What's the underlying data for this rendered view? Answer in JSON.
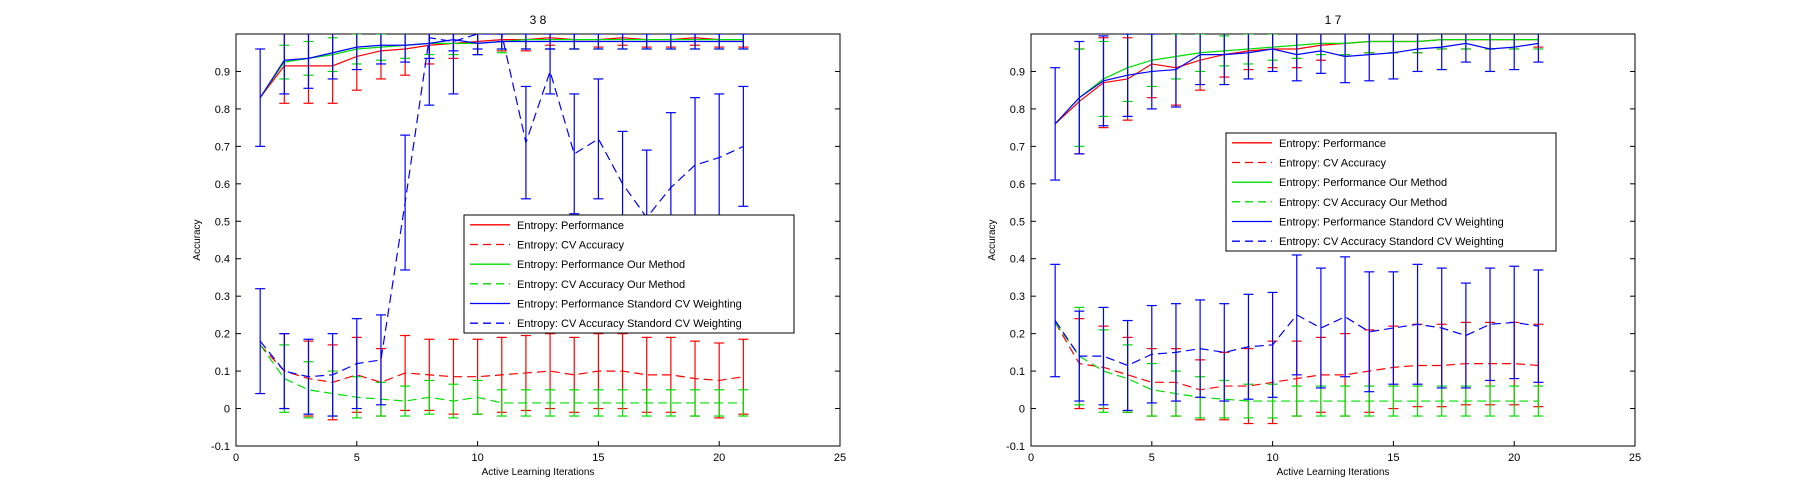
{
  "chart_data": [
    {
      "type": "line",
      "title": "3  8",
      "xlabel": "Active Learning Iterations",
      "ylabel": "Accuracy",
      "xlim": [
        0,
        25
      ],
      "ylim": [
        -0.1,
        1.0
      ],
      "xticks": [
        0,
        5,
        10,
        15,
        20,
        25
      ],
      "yticks": [
        -0.1,
        0,
        0.1,
        0.2,
        0.3,
        0.4,
        0.5,
        0.6,
        0.7,
        0.8,
        0.9
      ],
      "legend_position": "center-right",
      "x": [
        1,
        2,
        3,
        4,
        5,
        6,
        7,
        8,
        9,
        10,
        11,
        12,
        13,
        14,
        15,
        16,
        17,
        18,
        19,
        20,
        21
      ],
      "series": [
        {
          "name": "Entropy: Performance",
          "color": "#ff0000",
          "dash": false,
          "values": [
            0.83,
            0.915,
            0.915,
            0.915,
            0.94,
            0.955,
            0.96,
            0.97,
            0.975,
            0.98,
            0.985,
            0.985,
            0.99,
            0.985,
            0.985,
            0.99,
            0.985,
            0.985,
            0.99,
            0.985,
            0.985
          ],
          "err": [
            0.0,
            0.1,
            0.1,
            0.1,
            0.09,
            0.075,
            0.07,
            0.05,
            0.04,
            0.035,
            0.03,
            0.03,
            0.02,
            0.025,
            0.02,
            0.02,
            0.02,
            0.02,
            0.02,
            0.02,
            0.02
          ]
        },
        {
          "name": "Entropy: CV Accuracy",
          "color": "#ff0000",
          "dash": true,
          "values": [
            0.17,
            0.1,
            0.08,
            0.07,
            0.09,
            0.07,
            0.095,
            0.09,
            0.085,
            0.085,
            0.09,
            0.095,
            0.1,
            0.09,
            0.1,
            0.1,
            0.09,
            0.09,
            0.08,
            0.075,
            0.085
          ],
          "err": [
            0.0,
            0.1,
            0.1,
            0.1,
            0.1,
            0.09,
            0.1,
            0.095,
            0.1,
            0.1,
            0.1,
            0.1,
            0.1,
            0.1,
            0.1,
            0.1,
            0.1,
            0.1,
            0.1,
            0.1,
            0.1
          ]
        },
        {
          "name": "Entropy: Performance Our Method",
          "color": "#00dd00",
          "dash": false,
          "values": [
            0.83,
            0.925,
            0.935,
            0.945,
            0.96,
            0.965,
            0.97,
            0.975,
            0.975,
            0.975,
            0.98,
            0.985,
            0.985,
            0.985,
            0.985,
            0.985,
            0.985,
            0.985,
            0.985,
            0.985,
            0.985
          ],
          "err": [
            0.0,
            0.045,
            0.045,
            0.045,
            0.04,
            0.035,
            0.035,
            0.03,
            0.03,
            0.03,
            0.03,
            0.025,
            0.025,
            0.025,
            0.025,
            0.025,
            0.025,
            0.025,
            0.025,
            0.025,
            0.025
          ]
        },
        {
          "name": "Entropy: CV Accuracy Our Method",
          "color": "#00dd00",
          "dash": true,
          "values": [
            0.17,
            0.08,
            0.05,
            0.04,
            0.03,
            0.025,
            0.02,
            0.03,
            0.02,
            0.03,
            0.015,
            0.015,
            0.015,
            0.015,
            0.015,
            0.015,
            0.015,
            0.015,
            0.015,
            0.015,
            0.015
          ],
          "err": [
            0.0,
            0.09,
            0.075,
            0.06,
            0.055,
            0.045,
            0.04,
            0.045,
            0.045,
            0.045,
            0.035,
            0.035,
            0.035,
            0.035,
            0.035,
            0.035,
            0.035,
            0.035,
            0.035,
            0.035,
            0.035
          ]
        },
        {
          "name": "Entropy: Performance Standord CV Weighting",
          "color": "#0000ff",
          "dash": false,
          "values": [
            0.83,
            0.93,
            0.935,
            0.95,
            0.965,
            0.97,
            0.97,
            0.975,
            0.985,
            0.975,
            0.98,
            0.98,
            0.98,
            0.98,
            0.98,
            0.98,
            0.98,
            0.98,
            0.98,
            0.98,
            0.98
          ],
          "err": [
            0.13,
            0.09,
            0.08,
            0.07,
            0.06,
            0.05,
            0.045,
            0.04,
            0.03,
            0.03,
            0.02,
            0.02,
            0.02,
            0.02,
            0.02,
            0.02,
            0.02,
            0.02,
            0.02,
            0.02,
            0.02
          ]
        },
        {
          "name": "Entropy: CV Accuracy Standord CV Weighting",
          "color": "#0000ff",
          "dash": true,
          "values": [
            0.18,
            0.1,
            0.085,
            0.09,
            0.12,
            0.13,
            0.55,
            0.99,
            0.98,
            1.0,
            1.0,
            0.71,
            0.9,
            0.68,
            0.72,
            0.6,
            0.51,
            0.59,
            0.65,
            0.67,
            0.7
          ],
          "err": [
            0.14,
            0.1,
            0.1,
            0.11,
            0.12,
            0.12,
            0.18,
            0.18,
            0.14,
            0.04,
            0.02,
            0.15,
            0.06,
            0.16,
            0.16,
            0.14,
            0.18,
            0.2,
            0.18,
            0.17,
            0.16
          ]
        }
      ]
    },
    {
      "type": "line",
      "title": "1  7",
      "xlabel": "Active Learning Iterations",
      "ylabel": "Accuracy",
      "xlim": [
        0,
        25
      ],
      "ylim": [
        -0.1,
        1.0
      ],
      "xticks": [
        0,
        5,
        10,
        15,
        20,
        25
      ],
      "yticks": [
        -0.1,
        0,
        0.1,
        0.2,
        0.3,
        0.4,
        0.5,
        0.6,
        0.7,
        0.8,
        0.9
      ],
      "legend_position": "center",
      "x": [
        1,
        2,
        3,
        4,
        5,
        6,
        7,
        8,
        9,
        10,
        11,
        12,
        13,
        14,
        15,
        16,
        17,
        18,
        19,
        20,
        21
      ],
      "series": [
        {
          "name": "Entropy: Performance",
          "color": "#ff0000",
          "dash": false,
          "values": [
            0.76,
            0.82,
            0.87,
            0.88,
            0.92,
            0.91,
            0.93,
            0.945,
            0.955,
            0.96,
            0.96,
            0.97,
            0.975,
            0.98,
            0.98,
            0.98,
            0.985,
            0.985,
            0.985,
            0.985,
            0.985
          ],
          "err": [
            0.0,
            0.14,
            0.12,
            0.11,
            0.09,
            0.1,
            0.08,
            0.06,
            0.05,
            0.05,
            0.05,
            0.04,
            0.03,
            0.03,
            0.03,
            0.03,
            0.025,
            0.025,
            0.025,
            0.025,
            0.02
          ]
        },
        {
          "name": "Entropy: CV Accuracy",
          "color": "#ff0000",
          "dash": true,
          "values": [
            0.23,
            0.12,
            0.11,
            0.09,
            0.07,
            0.07,
            0.05,
            0.06,
            0.06,
            0.07,
            0.08,
            0.09,
            0.09,
            0.1,
            0.11,
            0.115,
            0.115,
            0.12,
            0.12,
            0.12,
            0.115
          ],
          "err": [
            0.0,
            0.12,
            0.11,
            0.1,
            0.09,
            0.09,
            0.08,
            0.09,
            0.1,
            0.11,
            0.1,
            0.1,
            0.11,
            0.11,
            0.11,
            0.11,
            0.11,
            0.11,
            0.11,
            0.11,
            0.11
          ]
        },
        {
          "name": "Entropy: Performance Our Method",
          "color": "#00dd00",
          "dash": false,
          "values": [
            0.76,
            0.83,
            0.88,
            0.91,
            0.93,
            0.94,
            0.95,
            0.955,
            0.96,
            0.965,
            0.97,
            0.975,
            0.975,
            0.98,
            0.98,
            0.98,
            0.985,
            0.985,
            0.985,
            0.985,
            0.985
          ],
          "err": [
            0.0,
            0.13,
            0.1,
            0.09,
            0.07,
            0.06,
            0.05,
            0.04,
            0.04,
            0.035,
            0.035,
            0.03,
            0.03,
            0.03,
            0.03,
            0.03,
            0.025,
            0.025,
            0.025,
            0.025,
            0.025
          ]
        },
        {
          "name": "Entropy: CV Accuracy Our Method",
          "color": "#00dd00",
          "dash": true,
          "values": [
            0.23,
            0.14,
            0.1,
            0.08,
            0.05,
            0.04,
            0.03,
            0.025,
            0.02,
            0.02,
            0.02,
            0.02,
            0.02,
            0.02,
            0.02,
            0.02,
            0.02,
            0.02,
            0.02,
            0.02,
            0.02
          ],
          "err": [
            0.0,
            0.13,
            0.11,
            0.09,
            0.07,
            0.06,
            0.055,
            0.05,
            0.045,
            0.045,
            0.04,
            0.04,
            0.04,
            0.04,
            0.04,
            0.04,
            0.04,
            0.04,
            0.04,
            0.04,
            0.04
          ]
        },
        {
          "name": "Entropy: Performance Standord CV Weighting",
          "color": "#0000ff",
          "dash": false,
          "values": [
            0.76,
            0.83,
            0.875,
            0.89,
            0.9,
            0.905,
            0.945,
            0.945,
            0.95,
            0.96,
            0.945,
            0.955,
            0.94,
            0.945,
            0.95,
            0.96,
            0.965,
            0.975,
            0.96,
            0.965,
            0.975
          ],
          "err": [
            0.15,
            0.15,
            0.12,
            0.11,
            0.1,
            0.1,
            0.08,
            0.08,
            0.07,
            0.06,
            0.07,
            0.06,
            0.07,
            0.07,
            0.07,
            0.06,
            0.06,
            0.05,
            0.06,
            0.06,
            0.05
          ]
        },
        {
          "name": "Entropy: CV Accuracy Standord CV Weighting",
          "color": "#0000ff",
          "dash": true,
          "values": [
            0.235,
            0.14,
            0.14,
            0.115,
            0.145,
            0.15,
            0.16,
            0.15,
            0.165,
            0.17,
            0.25,
            0.215,
            0.245,
            0.205,
            0.215,
            0.225,
            0.215,
            0.195,
            0.225,
            0.23,
            0.22
          ],
          "err": [
            0.15,
            0.12,
            0.13,
            0.12,
            0.13,
            0.13,
            0.13,
            0.13,
            0.14,
            0.14,
            0.16,
            0.16,
            0.16,
            0.16,
            0.15,
            0.16,
            0.16,
            0.14,
            0.15,
            0.15,
            0.15
          ]
        }
      ]
    }
  ]
}
